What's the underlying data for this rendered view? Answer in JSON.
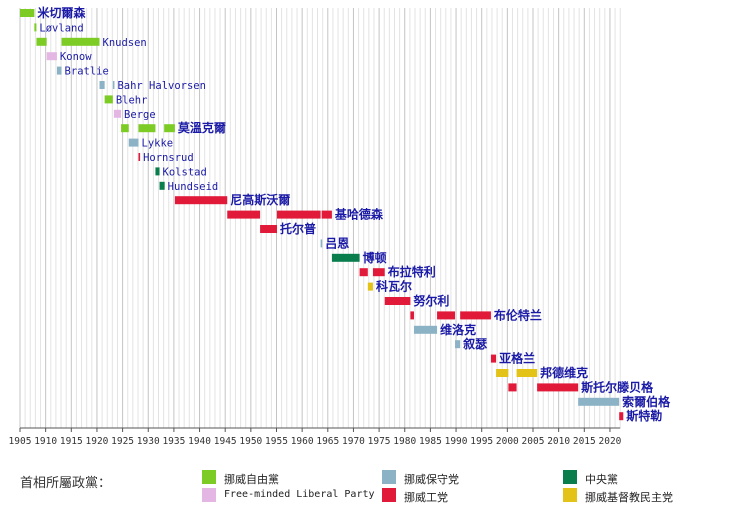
{
  "chart_data": {
    "type": "timeline",
    "xlim": [
      1905,
      2022
    ],
    "x_ticks": [
      1905,
      1910,
      1915,
      1920,
      1925,
      1930,
      1935,
      1940,
      1945,
      1950,
      1955,
      1960,
      1965,
      1970,
      1975,
      1980,
      1985,
      1990,
      1995,
      2000,
      2005,
      2010,
      2015,
      2020
    ],
    "grid": "vertical, every year",
    "parties": {
      "venstre": {
        "label": "挪威自由黨",
        "color": "#7dcc26"
      },
      "freeminded": {
        "label": "Free-minded Liberal Party",
        "color": "#e4b6e4"
      },
      "hoyre": {
        "label": "挪威保守党",
        "color": "#8bb3c5"
      },
      "ap": {
        "label": "挪威工党",
        "color": "#e21a3a"
      },
      "sp": {
        "label": "中央黨",
        "color": "#0a7d4c"
      },
      "krf": {
        "label": "挪威基督教民主党",
        "color": "#e3c318"
      }
    },
    "prime_ministers": [
      {
        "name": "米切爾森",
        "party": "venstre",
        "terms": [
          [
            1905,
            1907.8
          ]
        ]
      },
      {
        "name": "Løvland",
        "party": "venstre",
        "terms": [
          [
            1907.8,
            1908.2
          ]
        ]
      },
      {
        "name": "Knudsen",
        "party": "venstre",
        "terms": [
          [
            1908.2,
            1910.2
          ],
          [
            1913.1,
            1920.5
          ]
        ]
      },
      {
        "name": "Konow",
        "party": "freeminded",
        "terms": [
          [
            1910.2,
            1912.2
          ]
        ]
      },
      {
        "name": "Bratlie",
        "party": "hoyre",
        "terms": [
          [
            1912.2,
            1913.1
          ]
        ]
      },
      {
        "name": "Bahr Halvorsen",
        "party": "hoyre",
        "terms": [
          [
            1920.5,
            1921.5
          ],
          [
            1923.1,
            1923.3
          ]
        ]
      },
      {
        "name": "Blehr",
        "party": "venstre",
        "terms": [
          [
            1921.5,
            1923.1
          ]
        ]
      },
      {
        "name": "Berge",
        "party": "freeminded",
        "terms": [
          [
            1923.3,
            1924.7
          ]
        ]
      },
      {
        "name": "莫溫克爾",
        "party": "venstre",
        "terms": [
          [
            1924.7,
            1926.2
          ],
          [
            1928.1,
            1931.4
          ],
          [
            1933.1,
            1935.2
          ]
        ]
      },
      {
        "name": "Lykke",
        "party": "hoyre",
        "terms": [
          [
            1926.2,
            1928.1
          ]
        ]
      },
      {
        "name": "Hornsrud",
        "party": "ap",
        "terms": [
          [
            1928.1,
            1928.2
          ]
        ]
      },
      {
        "name": "Kolstad",
        "party": "sp",
        "terms": [
          [
            1931.4,
            1932.2
          ]
        ]
      },
      {
        "name": "Hundseid",
        "party": "sp",
        "terms": [
          [
            1932.2,
            1933.2
          ]
        ]
      },
      {
        "name": "尼高斯沃爾",
        "party": "ap",
        "terms": [
          [
            1935.2,
            1945.4
          ]
        ]
      },
      {
        "name": "基哈德森",
        "party": "ap",
        "terms": [
          [
            1945.4,
            1951.8
          ],
          [
            1955.1,
            1963.6
          ],
          [
            1963.8,
            1965.8
          ]
        ]
      },
      {
        "name": "托尔普",
        "party": "ap",
        "terms": [
          [
            1951.8,
            1955.1
          ]
        ]
      },
      {
        "name": "吕恩",
        "party": "hoyre",
        "terms": [
          [
            1963.6,
            1963.8
          ]
        ]
      },
      {
        "name": "博顿",
        "party": "sp",
        "terms": [
          [
            1965.8,
            1971.2
          ]
        ]
      },
      {
        "name": "布拉特利",
        "party": "ap",
        "terms": [
          [
            1971.2,
            1972.8
          ],
          [
            1973.8,
            1976.1
          ]
        ]
      },
      {
        "name": "科瓦尔",
        "party": "krf",
        "terms": [
          [
            1972.8,
            1973.8
          ]
        ]
      },
      {
        "name": "努尔利",
        "party": "ap",
        "terms": [
          [
            1976.1,
            1981.1
          ]
        ]
      },
      {
        "name": "布伦特兰",
        "party": "ap",
        "terms": [
          [
            1981.1,
            1981.8
          ],
          [
            1986.3,
            1989.8
          ],
          [
            1990.8,
            1996.8
          ]
        ]
      },
      {
        "name": "维洛克",
        "party": "hoyre",
        "terms": [
          [
            1981.8,
            1986.3
          ]
        ]
      },
      {
        "name": "叙瑟",
        "party": "hoyre",
        "terms": [
          [
            1989.8,
            1990.8
          ]
        ]
      },
      {
        "name": "亚格兰",
        "party": "ap",
        "terms": [
          [
            1996.8,
            1997.8
          ]
        ]
      },
      {
        "name": "邦德维克",
        "party": "krf",
        "terms": [
          [
            1997.8,
            2000.2
          ],
          [
            2001.8,
            2005.8
          ]
        ]
      },
      {
        "name": "斯托尔滕贝格",
        "party": "ap",
        "terms": [
          [
            2000.2,
            2001.8
          ],
          [
            2005.8,
            2013.8
          ]
        ]
      },
      {
        "name": "索爾伯格",
        "party": "hoyre",
        "terms": [
          [
            2013.8,
            2021.8
          ]
        ]
      },
      {
        "name": "斯特勒",
        "party": "ap",
        "terms": [
          [
            2021.8,
            2022.6
          ]
        ]
      }
    ]
  },
  "legend": {
    "title": "首相所屬政黨："
  }
}
